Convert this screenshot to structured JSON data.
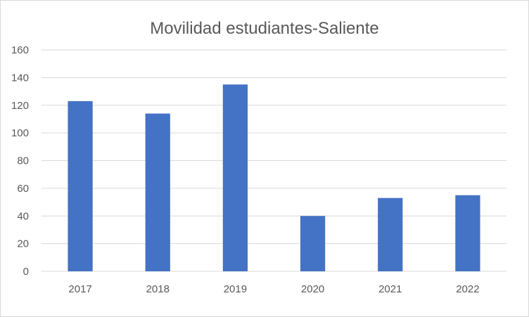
{
  "chart_data": {
    "type": "bar",
    "title": "Movilidad estudiantes-Saliente",
    "categories": [
      "2017",
      "2018",
      "2019",
      "2020",
      "2021",
      "2022"
    ],
    "values": [
      123,
      114,
      135,
      40,
      53,
      55
    ],
    "xlabel": "",
    "ylabel": "",
    "ylim": [
      0,
      160
    ],
    "yticks": [
      0,
      20,
      40,
      60,
      80,
      100,
      120,
      140,
      160
    ],
    "grid": true,
    "legend": "none",
    "bar_color": "#4472c4",
    "grid_color": "#d9d9d9"
  }
}
